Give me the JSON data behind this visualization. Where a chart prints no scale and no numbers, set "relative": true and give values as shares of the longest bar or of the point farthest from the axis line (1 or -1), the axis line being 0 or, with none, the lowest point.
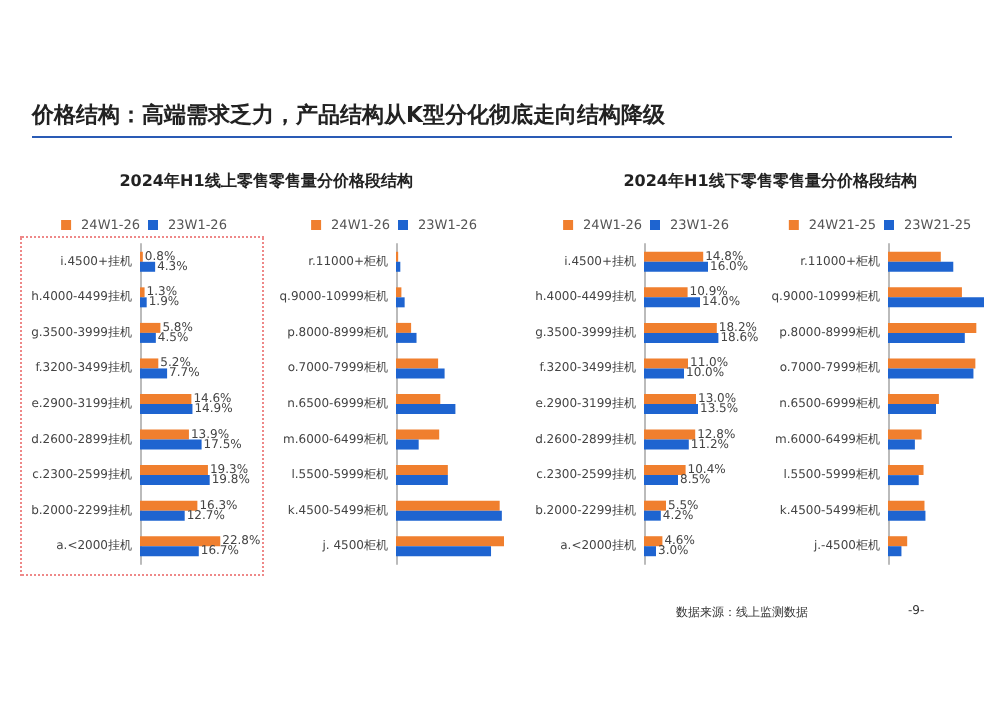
{
  "chart_data": [
    {
      "type": "bar",
      "orientation": "horizontal",
      "title": "2024年H1线上零售零售量分价格段结构",
      "annotations": [
        "价格结构：高端需求乏力，产品结构从K型分化彻底走向结构降级",
        "数据来源：线上监测数据",
        "-9-"
      ],
      "legend": "top",
      "categories": [
        "i.4500+挂机",
        "h.4000-4499挂机",
        "g.3500-3999挂机",
        "f.3200-3499挂机",
        "e.2900-3199挂机",
        "d.2600-2899挂机",
        "c.2300-2599挂机",
        "b.2000-2299挂机",
        "a.<2000挂机"
      ],
      "series": [
        {
          "name": "24W1-26",
          "color": "#f07f2e",
          "values": [
            0.8,
            1.3,
            5.8,
            5.2,
            14.6,
            13.9,
            19.3,
            16.3,
            22.8
          ],
          "value_labels": [
            "0.8%",
            "1.3%",
            "5.8%",
            "5.2%",
            "14.6%",
            "13.9%",
            "19.3%",
            "16.3%",
            "22.8%"
          ]
        },
        {
          "name": "23W1-26",
          "color": "#1e64d0",
          "values": [
            4.3,
            1.9,
            4.5,
            7.7,
            14.9,
            17.5,
            19.8,
            12.7,
            16.7
          ],
          "value_labels": [
            "4.3%",
            "1.9%",
            "4.5%",
            "7.7%",
            "14.9%",
            "17.5%",
            "19.8%",
            "12.7%",
            "16.7%"
          ]
        }
      ]
    },
    {
      "type": "bar",
      "orientation": "horizontal",
      "relative": true,
      "legend": "top",
      "categories": [
        "r.11000+柜机",
        "q.9000-10999柜机",
        "p.8000-8999柜机",
        "o.7000-7999柜机",
        "n.6500-6999柜机",
        "m.6000-6499柜机",
        "l.5500-5999柜机",
        "k.4500-5499柜机",
        "j. 4500柜机"
      ],
      "series": [
        {
          "name": "24W1-26",
          "color": "#f07f2e",
          "values": [
            0.02,
            0.05,
            0.14,
            0.39,
            0.41,
            0.4,
            0.48,
            0.96,
            1
          ]
        },
        {
          "name": "23W1-26",
          "color": "#1e64d0",
          "values": [
            0.04,
            0.08,
            0.19,
            0.45,
            0.55,
            0.21,
            0.48,
            0.98,
            0.88
          ]
        }
      ]
    },
    {
      "type": "bar",
      "orientation": "horizontal",
      "title": "2024年H1线下零售零售量分价格段结构",
      "legend": "top",
      "categories": [
        "i.4500+挂机",
        "h.4000-4499挂机",
        "g.3500-3999挂机",
        "f.3200-3499挂机",
        "e.2900-3199挂机",
        "d.2600-2899挂机",
        "c.2300-2599挂机",
        "b.2000-2299挂机",
        "a.<2000挂机"
      ],
      "series": [
        {
          "name": "24W1-26",
          "color": "#f07f2e",
          "values": [
            14.8,
            10.9,
            18.2,
            11.0,
            13.0,
            12.8,
            10.4,
            5.5,
            4.6
          ],
          "value_labels": [
            "14.8%",
            "10.9%",
            "18.2%",
            "11.0%",
            "13.0%",
            "12.8%",
            "10.4%",
            "5.5%",
            "4.6%"
          ]
        },
        {
          "name": "23W1-26",
          "color": "#1e64d0",
          "values": [
            16.0,
            14.0,
            18.6,
            10.0,
            13.5,
            11.2,
            8.5,
            4.2,
            3.0
          ],
          "value_labels": [
            "16.0%",
            "14.0%",
            "18.6%",
            "10.0%",
            "13.5%",
            "11.2%",
            "8.5%",
            "4.2%",
            "3.0%"
          ]
        }
      ]
    },
    {
      "type": "bar",
      "orientation": "horizontal",
      "relative": true,
      "legend": "top",
      "categories": [
        "r.11000+柜机",
        "q.9000-10999柜机",
        "p.8000-8999柜机",
        "o.7000-7999柜机",
        "n.6500-6999柜机",
        "m.6000-6499柜机",
        "l.5500-5999柜机",
        "k.4500-5499柜机",
        "j.-4500柜机"
      ],
      "series": [
        {
          "name": "24W21-25",
          "color": "#f07f2e",
          "values": [
            0.55,
            0.77,
            0.92,
            0.91,
            0.53,
            0.35,
            0.37,
            0.38,
            0.2
          ]
        },
        {
          "name": "23W21-25",
          "color": "#1e64d0",
          "values": [
            0.68,
            1,
            0.8,
            0.89,
            0.5,
            0.28,
            0.32,
            0.39,
            0.14
          ]
        }
      ]
    }
  ]
}
